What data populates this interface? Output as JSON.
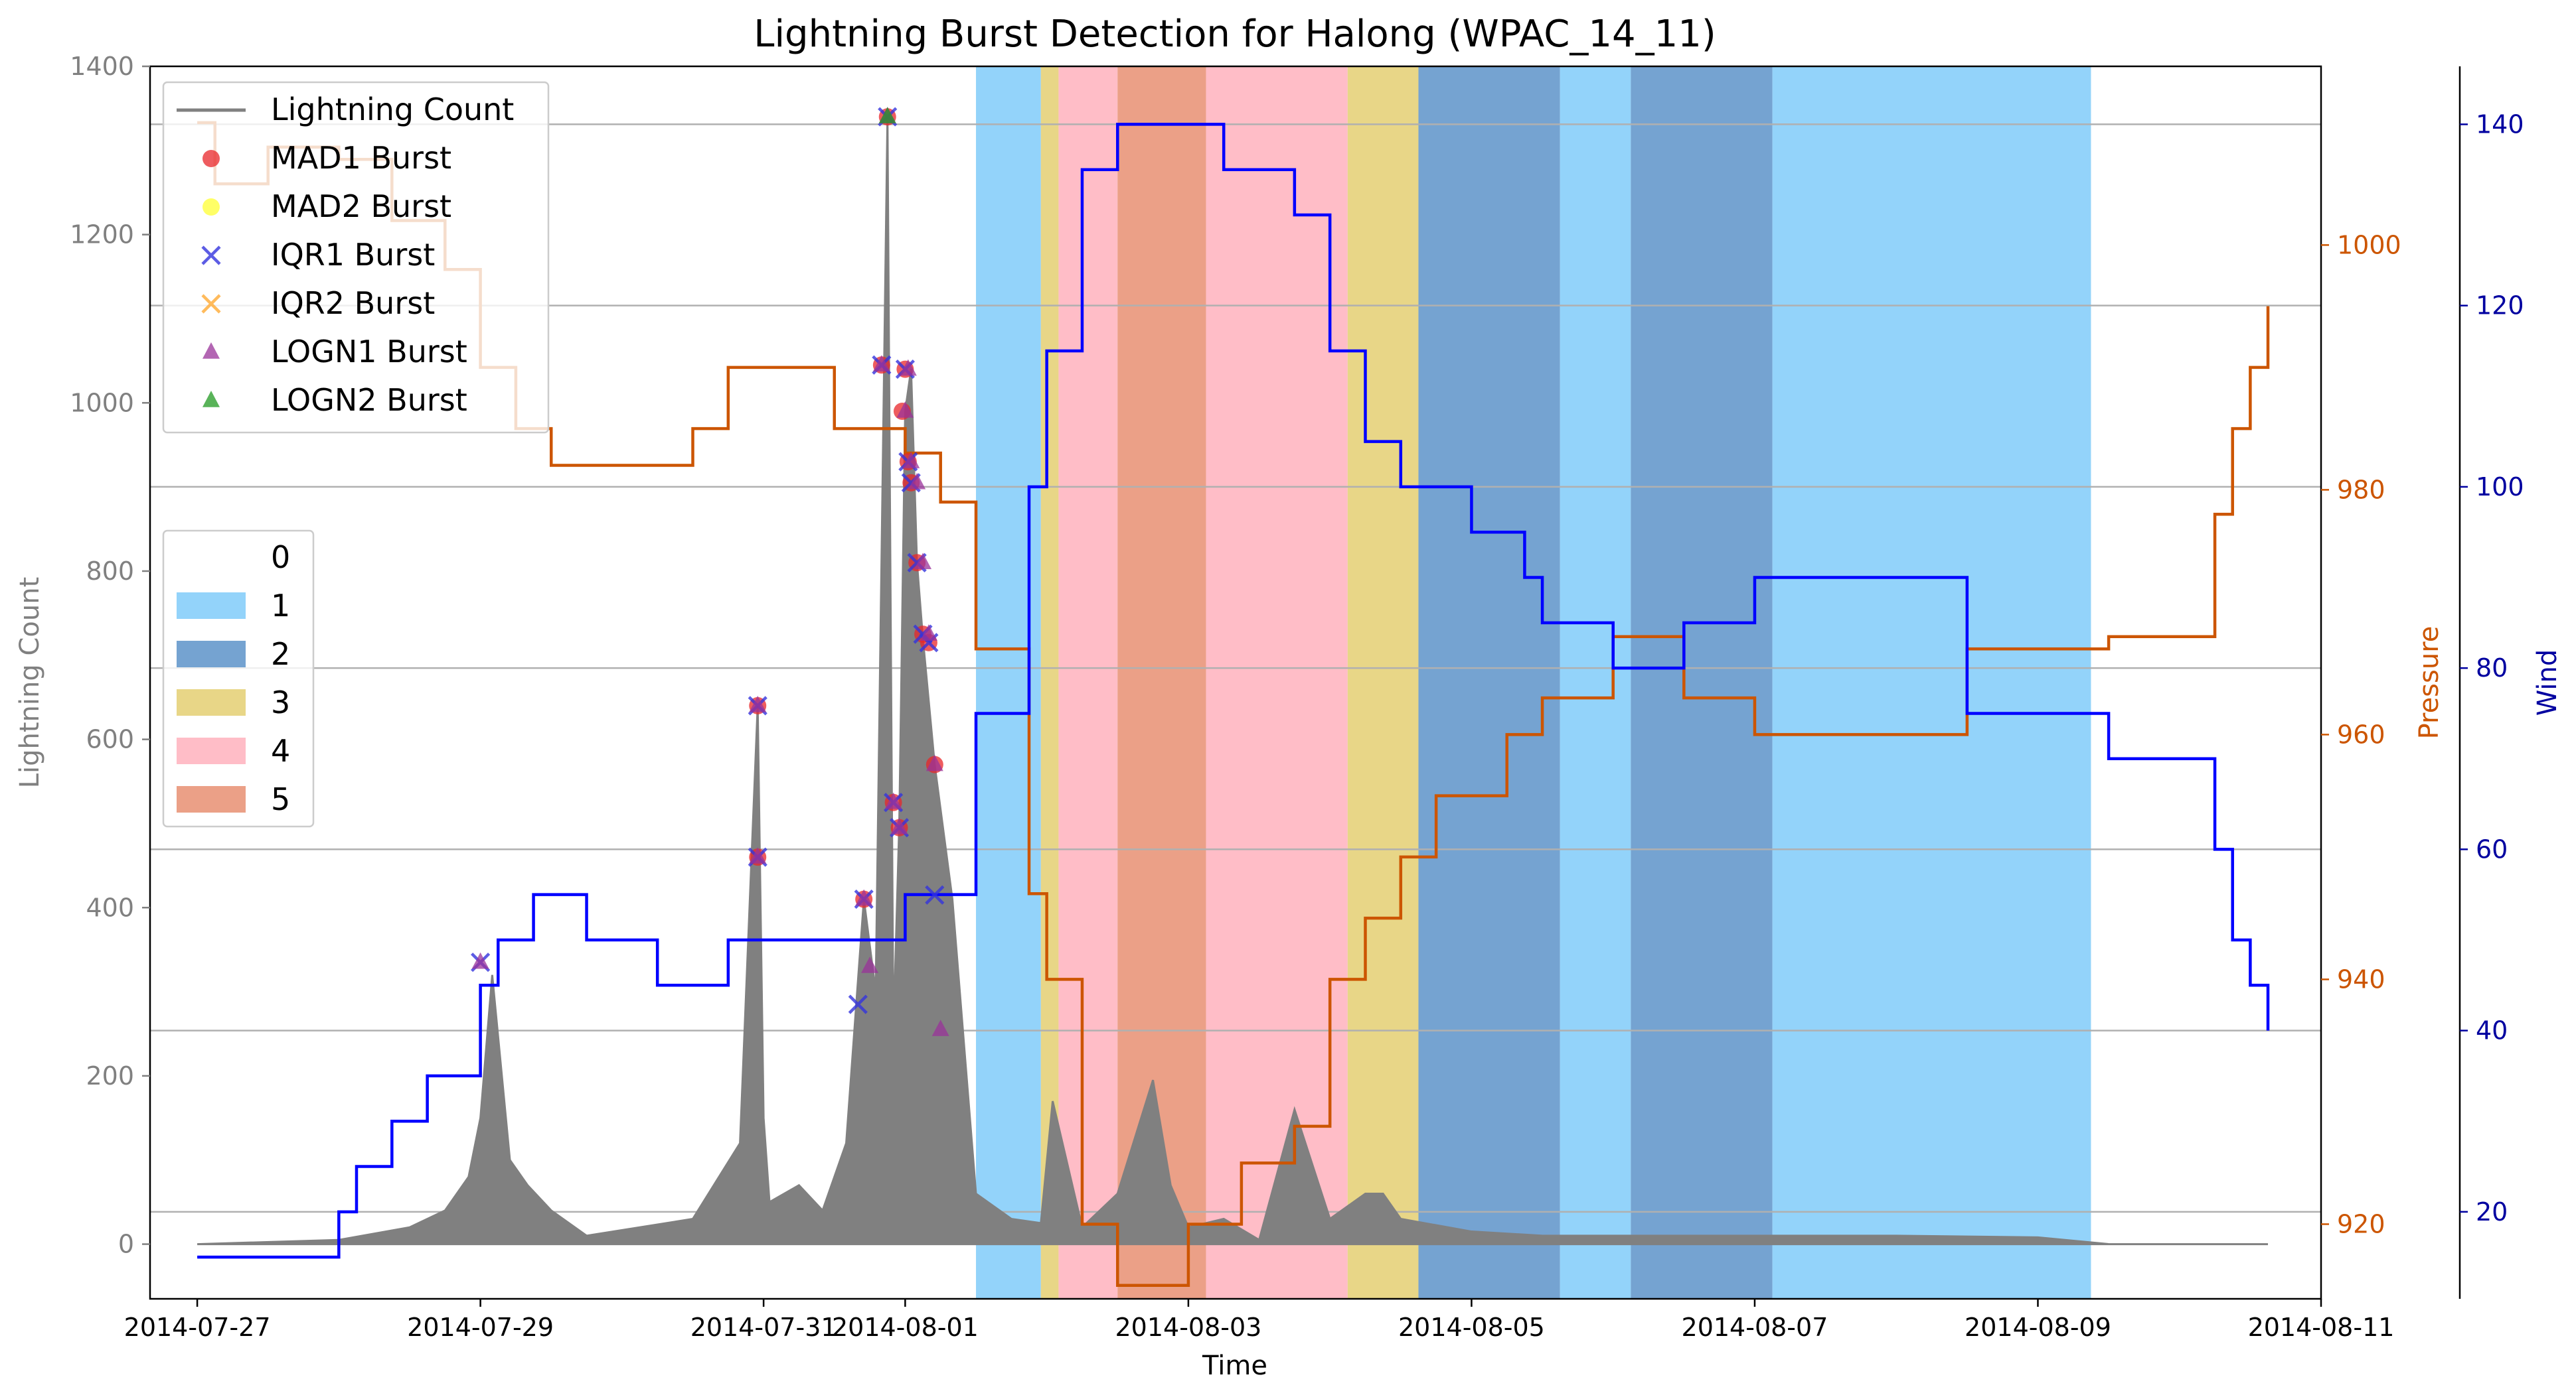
{
  "chart_data": {
    "type": "line",
    "title": "Lightning Burst Detection for Halong (WPAC_14_11)",
    "xlabel": "Time",
    "xlim": [
      "2014-07-26 16:00",
      "2014-08-11 00:00"
    ],
    "x_ticks": [
      "2014-07-27",
      "2014-07-29",
      "2014-07-31",
      "2014-08-01",
      "2014-08-03",
      "2014-08-05",
      "2014-08-07",
      "2014-08-09",
      "2014-08-11"
    ],
    "y_left": {
      "label": "Lightning Count",
      "ylim": [
        -65,
        1400
      ],
      "ticks": [
        0,
        200,
        400,
        600,
        800,
        1000,
        1200,
        1400
      ],
      "color": "#808080"
    },
    "y_pressure": {
      "label": "Pressure",
      "ylim": [
        913.9,
        1014.6
      ],
      "ticks": [
        920,
        940,
        960,
        980,
        1000
      ],
      "color": "#cc5500"
    },
    "y_wind": {
      "label": "Wind",
      "ylim": [
        10.4,
        146.4
      ],
      "ticks": [
        20,
        40,
        60,
        80,
        100,
        120,
        140
      ],
      "color": "#0000a0"
    },
    "grid": "horizontal lines at wind axis ticks",
    "category_legend": {
      "placement": "left",
      "entries": [
        {
          "label": "0",
          "color": "#ffffff"
        },
        {
          "label": "1",
          "color": "#87cefa"
        },
        {
          "label": "2",
          "color": "#6699cc"
        },
        {
          "label": "3",
          "color": "#e6d27a"
        },
        {
          "label": "4",
          "color": "#ffb6c1"
        },
        {
          "label": "5",
          "color": "#e9967a"
        }
      ]
    },
    "category_bands": [
      {
        "start": "2014-08-01 12:00",
        "end": "2014-08-01 23:00",
        "category": 1
      },
      {
        "start": "2014-08-01 23:00",
        "end": "2014-08-02 02:00",
        "category": 3
      },
      {
        "start": "2014-08-02 02:00",
        "end": "2014-08-02 12:00",
        "category": 4
      },
      {
        "start": "2014-08-02 12:00",
        "end": "2014-08-03 03:00",
        "category": 5
      },
      {
        "start": "2014-08-03 03:00",
        "end": "2014-08-04 03:00",
        "category": 4
      },
      {
        "start": "2014-08-04 03:00",
        "end": "2014-08-04 15:00",
        "category": 3
      },
      {
        "start": "2014-08-04 15:00",
        "end": "2014-08-05 15:00",
        "category": 2
      },
      {
        "start": "2014-08-05 15:00",
        "end": "2014-08-06 03:00",
        "category": 1
      },
      {
        "start": "2014-08-06 03:00",
        "end": "2014-08-07 03:00",
        "category": 2
      },
      {
        "start": "2014-08-07 03:00",
        "end": "2014-08-09 09:00",
        "category": 1
      }
    ],
    "legend": {
      "placement": "upper-left",
      "entries": [
        {
          "label": "Lightning Count",
          "marker": "line",
          "color": "#808080"
        },
        {
          "label": "MAD1 Burst",
          "marker": "circle",
          "color": "#e8262a"
        },
        {
          "label": "MAD2 Burst",
          "marker": "circle",
          "color": "#ffff33"
        },
        {
          "label": "IQR1 Burst",
          "marker": "x",
          "color": "#3333dd"
        },
        {
          "label": "IQR2 Burst",
          "marker": "x",
          "color": "#ffaa33"
        },
        {
          "label": "LOGN1 Burst",
          "marker": "triangle",
          "color": "#993399"
        },
        {
          "label": "LOGN2 Burst",
          "marker": "triangle",
          "color": "#229922"
        }
      ]
    },
    "series": [
      {
        "name": "Wind",
        "axis": "wind",
        "color": "#0000ff",
        "style": "step",
        "x": [
          "2014-07-27 00:00",
          "2014-07-28 00:00",
          "2014-07-28 03:00",
          "2014-07-28 06:00",
          "2014-07-28 09:00",
          "2014-07-28 12:00",
          "2014-07-28 15:00",
          "2014-07-28 18:00",
          "2014-07-29 00:00",
          "2014-07-29 03:00",
          "2014-07-29 06:00",
          "2014-07-29 09:00",
          "2014-07-29 12:00",
          "2014-07-29 15:00",
          "2014-07-29 18:00",
          "2014-07-30 06:00",
          "2014-07-30 12:00",
          "2014-07-30 18:00",
          "2014-07-31 12:00",
          "2014-08-01 00:00",
          "2014-08-01 09:00",
          "2014-08-01 12:00",
          "2014-08-01 21:00",
          "2014-08-02 00:00",
          "2014-08-02 06:00",
          "2014-08-02 12:00",
          "2014-08-03 00:00",
          "2014-08-03 06:00",
          "2014-08-03 18:00",
          "2014-08-04 00:00",
          "2014-08-04 06:00",
          "2014-08-04 12:00",
          "2014-08-05 00:00",
          "2014-08-05 09:00",
          "2014-08-05 12:00",
          "2014-08-06 00:00",
          "2014-08-06 12:00",
          "2014-08-07 00:00",
          "2014-08-08 12:00",
          "2014-08-09 12:00",
          "2014-08-10 06:00",
          "2014-08-10 09:00",
          "2014-08-10 12:00",
          "2014-08-10 15:00"
        ],
        "values": [
          15,
          20,
          25,
          25,
          30,
          30,
          35,
          35,
          45,
          50,
          50,
          55,
          55,
          55,
          50,
          45,
          45,
          50,
          50,
          55,
          55,
          75,
          100,
          115,
          135,
          140,
          140,
          135,
          130,
          115,
          105,
          100,
          95,
          90,
          85,
          80,
          85,
          90,
          75,
          70,
          60,
          50,
          45,
          40
        ]
      },
      {
        "name": "Pressure",
        "axis": "pressure",
        "color": "#cc5500",
        "style": "step",
        "x": [
          "2014-07-27 00:00",
          "2014-07-27 03:00",
          "2014-07-27 12:00",
          "2014-07-28 00:00",
          "2014-07-28 09:00",
          "2014-07-28 18:00",
          "2014-07-29 00:00",
          "2014-07-29 06:00",
          "2014-07-29 12:00",
          "2014-07-30 12:00",
          "2014-07-30 18:00",
          "2014-07-31 12:00",
          "2014-08-01 00:00",
          "2014-08-01 06:00",
          "2014-08-01 12:00",
          "2014-08-01 21:00",
          "2014-08-02 00:00",
          "2014-08-02 06:00",
          "2014-08-02 12:00",
          "2014-08-03 00:00",
          "2014-08-03 09:00",
          "2014-08-03 18:00",
          "2014-08-04 00:00",
          "2014-08-04 06:00",
          "2014-08-04 12:00",
          "2014-08-04 18:00",
          "2014-08-05 06:00",
          "2014-08-05 12:00",
          "2014-08-06 00:00",
          "2014-08-06 12:00",
          "2014-08-07 00:00",
          "2014-08-08 12:00",
          "2014-08-09 12:00",
          "2014-08-10 06:00",
          "2014-08-10 09:00",
          "2014-08-10 12:00",
          "2014-08-10 15:00"
        ],
        "values": [
          1010,
          1005,
          1008,
          1007,
          1002,
          998,
          990,
          985,
          982,
          985,
          990,
          985,
          983,
          979,
          967,
          947,
          940,
          920,
          915,
          920,
          925,
          928,
          940,
          945,
          950,
          955,
          960,
          963,
          968,
          963,
          960,
          967,
          968,
          978,
          985,
          990,
          995
        ]
      },
      {
        "name": "Lightning Count",
        "axis": "left",
        "color": "#808080",
        "style": "area",
        "x": [
          "2014-07-27 00:00",
          "2014-07-28 00:00",
          "2014-07-28 12:00",
          "2014-07-28 18:00",
          "2014-07-28 22:00",
          "2014-07-29 00:00",
          "2014-07-29 02:00",
          "2014-07-29 05:00",
          "2014-07-29 08:00",
          "2014-07-29 12:00",
          "2014-07-29 18:00",
          "2014-07-30 12:00",
          "2014-07-30 20:00",
          "2014-07-30 23:00",
          "2014-07-31 00:00",
          "2014-07-31 01:00",
          "2014-07-31 06:00",
          "2014-07-31 10:00",
          "2014-07-31 14:00",
          "2014-07-31 17:00",
          "2014-07-31 19:00",
          "2014-07-31 21:00",
          "2014-07-31 22:00",
          "2014-07-31 23:00",
          "2014-08-01 00:00",
          "2014-08-01 01:00",
          "2014-08-01 02:00",
          "2014-08-01 03:00",
          "2014-08-01 05:00",
          "2014-08-01 08:00",
          "2014-08-01 12:00",
          "2014-08-01 18:00",
          "2014-08-01 23:00",
          "2014-08-02 01:00",
          "2014-08-02 06:00",
          "2014-08-02 12:00",
          "2014-08-02 18:00",
          "2014-08-02 21:00",
          "2014-08-03 00:00",
          "2014-08-03 06:00",
          "2014-08-03 12:00",
          "2014-08-03 18:00",
          "2014-08-04 00:00",
          "2014-08-04 06:00",
          "2014-08-04 09:00",
          "2014-08-04 12:00",
          "2014-08-05 00:00",
          "2014-08-05 12:00",
          "2014-08-06 00:00",
          "2014-08-07 00:00",
          "2014-08-08 00:00",
          "2014-08-09 00:00",
          "2014-08-09 12:00",
          "2014-08-10 15:00"
        ],
        "values": [
          0,
          5,
          20,
          40,
          80,
          150,
          320,
          100,
          70,
          40,
          10,
          30,
          120,
          640,
          150,
          50,
          70,
          40,
          120,
          410,
          300,
          1340,
          250,
          500,
          990,
          1040,
          810,
          720,
          570,
          410,
          60,
          30,
          25,
          170,
          20,
          60,
          195,
          70,
          20,
          30,
          5,
          160,
          30,
          60,
          60,
          30,
          15,
          10,
          10,
          10,
          10,
          8,
          0,
          0
        ]
      },
      {
        "name": "MAD1 Burst",
        "axis": "left",
        "marker": "circle",
        "color": "#e8262a",
        "x": [
          "2014-07-30 23:00",
          "2014-07-30 23:00",
          "2014-07-31 17:00",
          "2014-07-31 20:00",
          "2014-07-31 21:00",
          "2014-07-31 22:00",
          "2014-07-31 23:00",
          "2014-07-31 23:30",
          "2014-08-01 00:00",
          "2014-08-01 00:30",
          "2014-08-01 01:00",
          "2014-08-01 02:00",
          "2014-08-01 03:00",
          "2014-08-01 04:00",
          "2014-08-01 05:00"
        ],
        "values": [
          640,
          460,
          410,
          1045,
          1340,
          525,
          495,
          990,
          1040,
          930,
          905,
          810,
          725,
          715,
          570
        ]
      },
      {
        "name": "IQR1 Burst",
        "axis": "left",
        "marker": "x",
        "color": "#3333dd",
        "x": [
          "2014-07-29 00:00",
          "2014-07-30 23:00",
          "2014-07-30 23:00",
          "2014-07-31 16:00",
          "2014-07-31 17:00",
          "2014-07-31 20:00",
          "2014-07-31 21:00",
          "2014-07-31 22:00",
          "2014-07-31 23:00",
          "2014-08-01 00:00",
          "2014-08-01 00:30",
          "2014-08-01 01:00",
          "2014-08-01 02:00",
          "2014-08-01 03:00",
          "2014-08-01 04:00",
          "2014-08-01 05:00"
        ],
        "values": [
          335,
          640,
          460,
          285,
          410,
          1045,
          1340,
          525,
          495,
          1040,
          930,
          905,
          810,
          725,
          715,
          415
        ]
      },
      {
        "name": "LOGN1 Burst",
        "axis": "left",
        "marker": "triangle",
        "color": "#993399",
        "x": [
          "2014-07-29 00:00",
          "2014-07-30 23:00",
          "2014-07-30 23:00",
          "2014-07-31 17:00",
          "2014-07-31 18:00",
          "2014-07-31 20:00",
          "2014-07-31 21:00",
          "2014-07-31 22:00",
          "2014-07-31 23:00",
          "2014-08-01 00:00",
          "2014-08-01 00:30",
          "2014-08-01 01:00",
          "2014-08-01 02:00",
          "2014-08-01 03:00",
          "2014-08-01 04:00",
          "2014-08-01 05:00",
          "2014-08-01 06:00"
        ],
        "values": [
          335,
          640,
          460,
          410,
          330,
          1045,
          1340,
          525,
          495,
          990,
          1040,
          930,
          905,
          810,
          725,
          570,
          255
        ]
      },
      {
        "name": "LOGN2 Burst",
        "axis": "left",
        "marker": "triangle",
        "color": "#229922",
        "x": [
          "2014-07-31 21:00"
        ],
        "values": [
          1340
        ]
      }
    ]
  }
}
